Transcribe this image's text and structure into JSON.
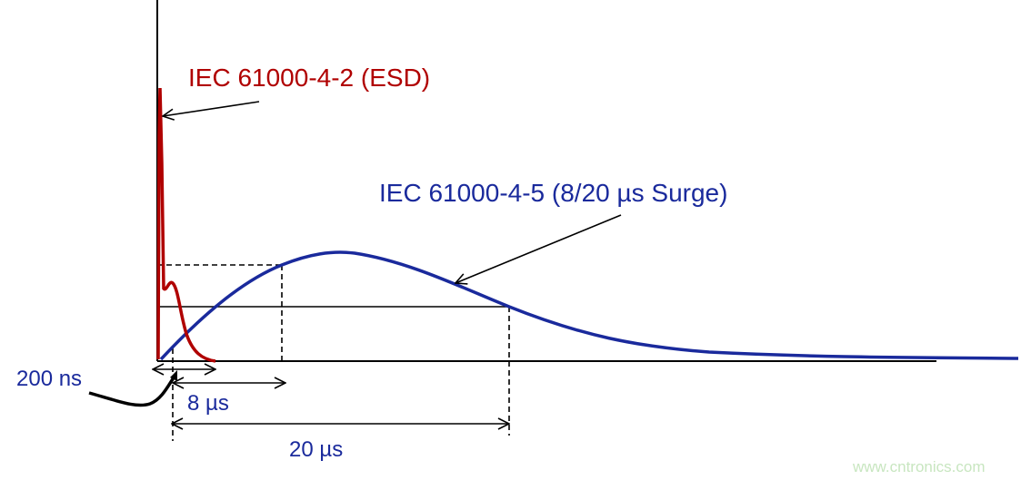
{
  "labels": {
    "esd": "IEC 61000-4-2 (ESD)",
    "surge": "IEC 61000-4-5 (8/20 µs Surge)",
    "rise_esd": "200 ns",
    "rise_surge": "8 µs",
    "half_surge": "20 µs"
  },
  "watermark": "www.cntronics.com",
  "colors": {
    "esd": "#b00000",
    "surge": "#1a2a9c",
    "axis": "#000000",
    "watermark": "#c8e6c0"
  }
}
